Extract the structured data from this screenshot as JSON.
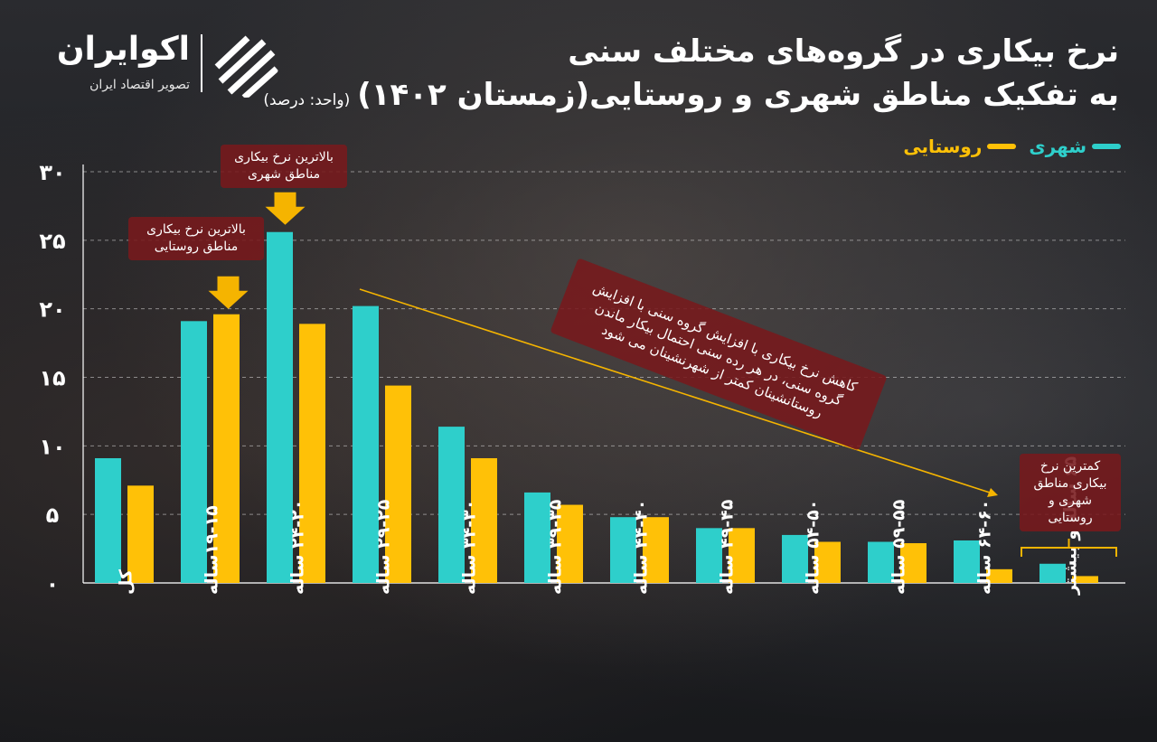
{
  "header": {
    "title_line1": "نرخ بیکاری در گروه‌های مختلف سنی",
    "title_line2": "به تفکیک مناطق شهری و روستایی(زمستان ۱۴۰۲)",
    "unit": "(واحد: درصد)"
  },
  "logo": {
    "brand": "اکوایران",
    "subtitle": "تصویر اقتصاد ایران"
  },
  "colors": {
    "urban": "#2ECFCB",
    "rural": "#FFC107",
    "callout": "#7A191C"
  },
  "annotations": {
    "max_urban": "بالاترین نرخ بیکاری مناطق شهری",
    "max_rural": "بالاترین نرخ بیکاری مناطق روستایی",
    "trend": "کاهش نرخ بیکاری با افزایش گروه سنی با افزایش گروه سنی، در هر رده سنی احتمال بیکار ماندن روستانشینان کمتر از شهرنشینان می شود",
    "min": "کمترین نرخ بیکاری مناطق شهری و روستایی"
  },
  "chart_data": {
    "type": "bar",
    "categories": [
      "کل",
      "۱۹-۱۵ساله",
      "۲۴-۲۰ ساله",
      "۲۹-۲۵ ساله",
      "۳۴-۳۰ ساله",
      "۳۹-۳۵ ساله",
      "۴۴-۴۰ ساله",
      "۴۹-۴۵ ساله",
      "۵۴-۵۰ ساله",
      "۵۹-۵۵ ساله",
      "۶۴-۶۰ ساله",
      "۶۵ ساله و بیشتر"
    ],
    "series": [
      {
        "name": "شهری",
        "values": [
          9.1,
          19.1,
          25.6,
          20.2,
          11.4,
          6.6,
          4.8,
          4.0,
          3.5,
          3.0,
          3.1,
          1.4
        ]
      },
      {
        "name": "روستایی",
        "values": [
          7.1,
          19.6,
          18.9,
          14.4,
          9.1,
          5.7,
          4.8,
          4.0,
          3.0,
          2.9,
          1.0,
          0.5
        ]
      }
    ],
    "y_ticks": [
      "۰",
      "۵",
      "۱۰",
      "۱۵",
      "۲۰",
      "۲۵",
      "۳۰"
    ],
    "ylim": [
      0,
      30
    ],
    "grid": true,
    "legend": "top-right"
  }
}
